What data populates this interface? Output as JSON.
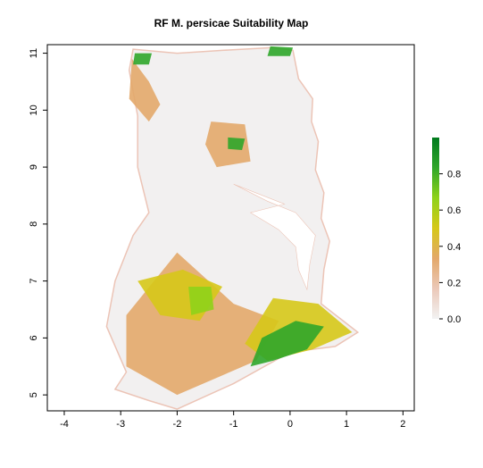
{
  "title": "RF M. persicae Suitability Map",
  "x_axis": {
    "range": [
      -4.3,
      2.2
    ],
    "ticks": [
      {
        "value": -4,
        "label": "-4"
      },
      {
        "value": -3,
        "label": "-3"
      },
      {
        "value": -2,
        "label": "-2"
      },
      {
        "value": -1,
        "label": "-1"
      },
      {
        "value": 0,
        "label": "0"
      },
      {
        "value": 1,
        "label": "1"
      },
      {
        "value": 2,
        "label": "2"
      }
    ]
  },
  "y_axis": {
    "range": [
      4.72,
      11.15
    ],
    "ticks": [
      {
        "value": 5,
        "label": "5"
      },
      {
        "value": 6,
        "label": "6"
      },
      {
        "value": 7,
        "label": "7"
      },
      {
        "value": 8,
        "label": "8"
      },
      {
        "value": 9,
        "label": "9"
      },
      {
        "value": 10,
        "label": "10"
      },
      {
        "value": 11,
        "label": "11"
      }
    ]
  },
  "legend": {
    "range": [
      0,
      1
    ],
    "ticks": [
      {
        "value": 0.0,
        "label": "0.0"
      },
      {
        "value": 0.2,
        "label": "0.2"
      },
      {
        "value": 0.4,
        "label": "0.4"
      },
      {
        "value": 0.6,
        "label": "0.6"
      },
      {
        "value": 0.8,
        "label": "0.8"
      }
    ],
    "colors": [
      "#f2f2f2",
      "#ebc8b8",
      "#e3a86a",
      "#d6c818",
      "#8fd21a",
      "#2fa62a",
      "#007a1e"
    ]
  },
  "colors": {
    "background": "#ffffff",
    "very_low": "#f2f0f0",
    "low": "#ecc4b6",
    "mid_low": "#e1aa72",
    "mid": "#d8cf20",
    "high": "#7fcc22",
    "very_high": "#1f9a2a",
    "lake": "#ffffff"
  },
  "map_data": {
    "outline": [
      [
        -2.78,
        11.07
      ],
      [
        -2.0,
        11.0
      ],
      [
        -1.2,
        11.05
      ],
      [
        -0.3,
        11.1
      ],
      [
        0.05,
        11.05
      ],
      [
        0.15,
        10.55
      ],
      [
        0.4,
        10.2
      ],
      [
        0.38,
        9.8
      ],
      [
        0.5,
        9.45
      ],
      [
        0.45,
        8.95
      ],
      [
        0.6,
        8.55
      ],
      [
        0.55,
        8.1
      ],
      [
        0.7,
        7.7
      ],
      [
        0.6,
        7.2
      ],
      [
        0.55,
        6.6
      ],
      [
        1.2,
        6.1
      ],
      [
        0.8,
        5.85
      ],
      [
        0.0,
        5.75
      ],
      [
        -1.0,
        5.2
      ],
      [
        -2.0,
        4.75
      ],
      [
        -2.5,
        4.9
      ],
      [
        -3.1,
        5.1
      ],
      [
        -2.9,
        5.4
      ],
      [
        -3.25,
        6.2
      ],
      [
        -3.1,
        7.0
      ],
      [
        -2.78,
        7.8
      ],
      [
        -2.5,
        8.2
      ],
      [
        -2.7,
        9.0
      ],
      [
        -2.7,
        9.9
      ],
      [
        -2.85,
        10.7
      ]
    ],
    "lake": [
      [
        -1.0,
        8.7
      ],
      [
        -0.4,
        8.4
      ],
      [
        0.1,
        8.2
      ],
      [
        0.45,
        7.8
      ],
      [
        0.35,
        7.3
      ],
      [
        0.3,
        6.85
      ],
      [
        0.15,
        7.2
      ],
      [
        0.1,
        7.6
      ],
      [
        -0.2,
        7.9
      ],
      [
        -0.7,
        8.2
      ],
      [
        -0.1,
        8.35
      ]
    ],
    "suitability_zones": [
      {
        "level": 0.25,
        "points": [
          [
            -2.9,
            6.4
          ],
          [
            -2.0,
            7.5
          ],
          [
            -1.0,
            6.6
          ],
          [
            -0.2,
            6.3
          ],
          [
            -0.6,
            5.6
          ],
          [
            -2.0,
            5.0
          ],
          [
            -2.9,
            5.5
          ]
        ]
      },
      {
        "level": 0.3,
        "points": [
          [
            -2.8,
            10.9
          ],
          [
            -2.5,
            10.5
          ],
          [
            -2.3,
            10.1
          ],
          [
            -2.5,
            9.8
          ],
          [
            -2.85,
            10.2
          ]
        ]
      },
      {
        "level": 0.3,
        "points": [
          [
            -1.4,
            9.8
          ],
          [
            -0.8,
            9.75
          ],
          [
            -0.7,
            9.1
          ],
          [
            -1.3,
            9.0
          ],
          [
            -1.5,
            9.4
          ]
        ]
      },
      {
        "level": 0.45,
        "points": [
          [
            -2.7,
            7.0
          ],
          [
            -1.9,
            7.2
          ],
          [
            -1.2,
            6.9
          ],
          [
            -1.6,
            6.3
          ],
          [
            -2.3,
            6.4
          ]
        ]
      },
      {
        "level": 0.55,
        "points": [
          [
            -0.3,
            6.7
          ],
          [
            0.5,
            6.6
          ],
          [
            1.1,
            6.1
          ],
          [
            0.4,
            5.8
          ],
          [
            -0.4,
            5.6
          ],
          [
            -0.8,
            5.9
          ]
        ]
      },
      {
        "level": 0.8,
        "points": [
          [
            -0.5,
            6.0
          ],
          [
            0.1,
            6.3
          ],
          [
            0.6,
            6.2
          ],
          [
            0.3,
            5.8
          ],
          [
            -0.3,
            5.6
          ],
          [
            -0.7,
            5.5
          ]
        ]
      },
      {
        "level": 0.7,
        "points": [
          [
            -1.8,
            6.9
          ],
          [
            -1.4,
            6.9
          ],
          [
            -1.35,
            6.5
          ],
          [
            -1.75,
            6.4
          ]
        ]
      },
      {
        "level": 0.75,
        "points": [
          [
            -2.75,
            11.0
          ],
          [
            -2.45,
            11.0
          ],
          [
            -2.5,
            10.8
          ],
          [
            -2.78,
            10.8
          ]
        ]
      },
      {
        "level": 0.85,
        "points": [
          [
            -0.35,
            11.12
          ],
          [
            0.05,
            11.1
          ],
          [
            0.0,
            10.95
          ],
          [
            -0.4,
            10.95
          ]
        ]
      },
      {
        "level": 0.75,
        "points": [
          [
            -1.1,
            9.52
          ],
          [
            -0.8,
            9.5
          ],
          [
            -0.85,
            9.3
          ],
          [
            -1.1,
            9.32
          ]
        ]
      }
    ]
  }
}
